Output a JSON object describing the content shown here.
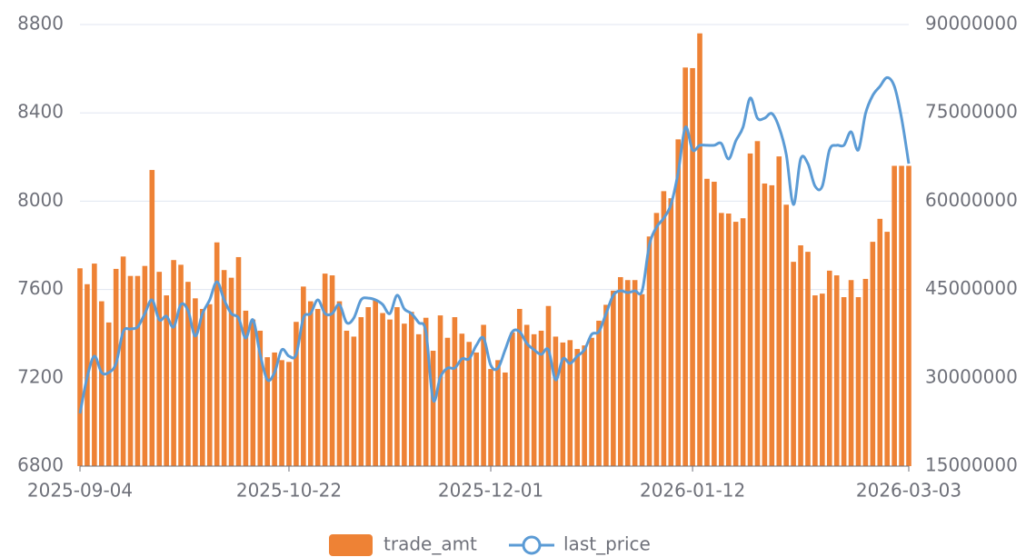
{
  "chart_data": {
    "type": "bar-line",
    "categories": [
      "2025-09-04",
      null,
      null,
      null,
      null,
      null,
      null,
      null,
      null,
      null,
      null,
      null,
      null,
      null,
      null,
      null,
      null,
      null,
      null,
      null,
      null,
      null,
      null,
      null,
      null,
      null,
      null,
      null,
      null,
      "2025-10-22",
      null,
      null,
      null,
      null,
      null,
      null,
      null,
      null,
      null,
      null,
      null,
      null,
      null,
      null,
      null,
      null,
      null,
      null,
      null,
      null,
      null,
      null,
      null,
      null,
      null,
      null,
      null,
      "2025-12-01",
      null,
      null,
      null,
      null,
      null,
      null,
      null,
      null,
      null,
      null,
      null,
      null,
      null,
      null,
      null,
      null,
      null,
      null,
      null,
      null,
      null,
      null,
      null,
      null,
      null,
      null,
      null,
      "2026-01-12",
      null,
      null,
      null,
      null,
      null,
      null,
      null,
      null,
      null,
      null,
      null,
      null,
      null,
      null,
      null,
      null,
      null,
      null,
      null,
      null,
      null,
      null,
      null,
      null,
      null,
      null,
      null,
      null,
      null,
      "2026-03-03"
    ],
    "series": [
      {
        "name": "trade_amt",
        "type": "bar",
        "axis": "y2",
        "color": "#ee8235",
        "values": [
          48600000,
          45900000,
          49400000,
          43000000,
          39400000,
          48500000,
          50600000,
          47300000,
          47300000,
          49000000,
          65300000,
          48000000,
          44000000,
          50000000,
          49200000,
          46300000,
          43500000,
          41700000,
          42500000,
          53000000,
          48300000,
          47000000,
          50500000,
          41400000,
          39900000,
          38000000,
          33500000,
          34300000,
          33000000,
          32700000,
          39500000,
          45500000,
          43000000,
          41700000,
          47700000,
          47400000,
          43000000,
          38000000,
          37000000,
          40300000,
          42000000,
          43200000,
          41000000,
          39900000,
          42000000,
          39200000,
          41200000,
          37400000,
          40200000,
          34600000,
          40600000,
          36800000,
          40300000,
          37500000,
          36100000,
          34300000,
          39000000,
          31500000,
          33000000,
          30900000,
          37700000,
          41700000,
          39000000,
          37400000,
          38000000,
          42200000,
          37000000,
          36000000,
          36400000,
          34900000,
          35500000,
          36800000,
          39700000,
          42400000,
          44800000,
          47100000,
          46600000,
          46600000,
          44200000,
          54000000,
          58000000,
          61700000,
          60500000,
          70500000,
          82700000,
          82600000,
          88500000,
          63800000,
          63300000,
          58000000,
          57900000,
          56500000,
          57100000,
          68100000,
          70200000,
          63000000,
          62700000,
          67600000,
          59400000,
          49700000,
          52500000,
          51400000,
          44000000,
          44300000,
          48200000,
          47400000,
          43700000,
          46600000,
          43700000,
          46800000,
          53100000,
          57000000,
          54800000,
          66000000,
          66000000,
          66000000
        ]
      },
      {
        "name": "last_price",
        "type": "line",
        "color": "#5b9bd5",
        "values": [
          7039,
          7203,
          7298,
          7224,
          7224,
          7265,
          7409,
          7421,
          7430,
          7491,
          7553,
          7463,
          7479,
          7430,
          7532,
          7504,
          7389,
          7491,
          7553,
          7635,
          7553,
          7491,
          7471,
          7380,
          7463,
          7306,
          7191,
          7224,
          7327,
          7298,
          7306,
          7471,
          7491,
          7553,
          7491,
          7491,
          7532,
          7450,
          7471,
          7553,
          7561,
          7553,
          7532,
          7491,
          7574,
          7512,
          7491,
          7450,
          7409,
          7100,
          7203,
          7244,
          7244,
          7286,
          7286,
          7347,
          7380,
          7257,
          7244,
          7327,
          7409,
          7409,
          7356,
          7327,
          7306,
          7327,
          7191,
          7286,
          7265,
          7298,
          7327,
          7397,
          7409,
          7491,
          7574,
          7594,
          7586,
          7594,
          7594,
          7800,
          7882,
          7923,
          7985,
          8129,
          8335,
          8232,
          8253,
          8253,
          8253,
          8261,
          8191,
          8273,
          8335,
          8467,
          8376,
          8376,
          8397,
          8335,
          8212,
          7985,
          8191,
          8170,
          8068,
          8068,
          8232,
          8253,
          8253,
          8314,
          8232,
          8397,
          8479,
          8520,
          8560,
          8520,
          8376,
          8170
        ]
      }
    ],
    "ylim": [
      6800,
      8800
    ],
    "yticks": [
      6800,
      7200,
      7600,
      8000,
      8400,
      8800
    ],
    "y2lim": [
      15000000,
      90000000
    ],
    "y2ticks": [
      15000000,
      30000000,
      45000000,
      60000000,
      75000000,
      90000000
    ],
    "grid": true,
    "legend": "bottom"
  }
}
